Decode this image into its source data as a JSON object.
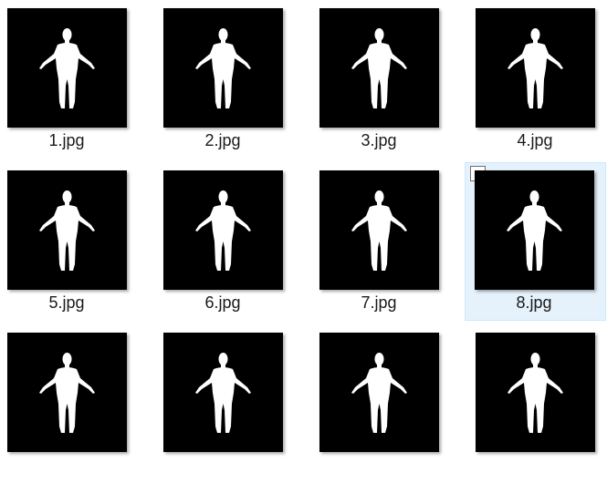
{
  "window": {
    "view": "large-icons"
  },
  "files": [
    {
      "name": "1.jpg",
      "selected": false
    },
    {
      "name": "2.jpg",
      "selected": false
    },
    {
      "name": "3.jpg",
      "selected": false
    },
    {
      "name": "4.jpg",
      "selected": false
    },
    {
      "name": "5.jpg",
      "selected": false
    },
    {
      "name": "6.jpg",
      "selected": false
    },
    {
      "name": "7.jpg",
      "selected": false
    },
    {
      "name": "8.jpg",
      "selected": true
    },
    {
      "name": "",
      "selected": false
    },
    {
      "name": "",
      "selected": false
    },
    {
      "name": "",
      "selected": false
    },
    {
      "name": "",
      "selected": false
    }
  ],
  "colors": {
    "thumb_bg": "#000000",
    "silhouette": "#ffffff",
    "selection_bg": "#e5f1fb",
    "selection_border": "#cde8ff"
  },
  "icons": {
    "thumbnail": "person-silhouette-icon",
    "checkbox": "checkbox-icon"
  }
}
